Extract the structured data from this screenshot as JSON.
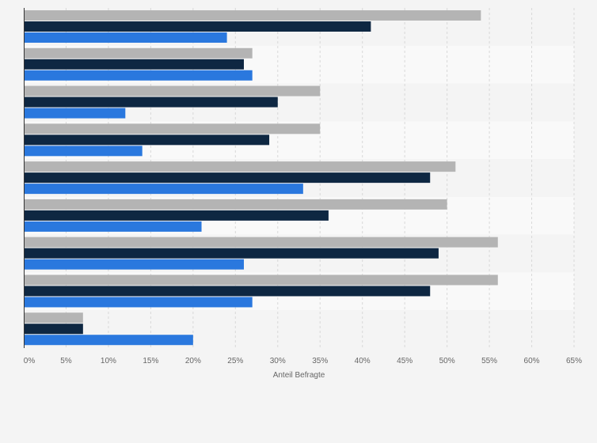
{
  "colors": {
    "page_background": "#f4f4f4",
    "band_dark": "#f4f4f4",
    "band_light": "#f9f9f9",
    "gridline": "#d9d9d9",
    "axis_line": "#333333"
  },
  "chart_data": {
    "type": "bar",
    "orientation": "horizontal",
    "categories": [
      "",
      "",
      "",
      "",
      "",
      "",
      "",
      "",
      ""
    ],
    "series": [
      {
        "color": "#b4b4b4",
        "values": [
          54,
          27,
          35,
          35,
          51,
          50,
          56,
          56,
          7
        ]
      },
      {
        "color": "#0e2742",
        "values": [
          41,
          26,
          30,
          29,
          48,
          36,
          49,
          48,
          7
        ]
      },
      {
        "color": "#2a78de",
        "values": [
          24,
          27,
          12,
          14,
          33,
          21,
          26,
          27,
          20
        ]
      }
    ],
    "xlabel": "Anteil Befragte",
    "ylabel": "",
    "xlim": [
      0,
      65
    ],
    "x_ticks": [
      0,
      5,
      10,
      15,
      20,
      25,
      30,
      35,
      40,
      45,
      50,
      55,
      60,
      65
    ],
    "x_tick_labels": [
      "0%",
      "5%",
      "10%",
      "15%",
      "20%",
      "25%",
      "30%",
      "35%",
      "40%",
      "45%",
      "50%",
      "55%",
      "60%",
      "65%"
    ],
    "grid": true,
    "legend": "none"
  }
}
